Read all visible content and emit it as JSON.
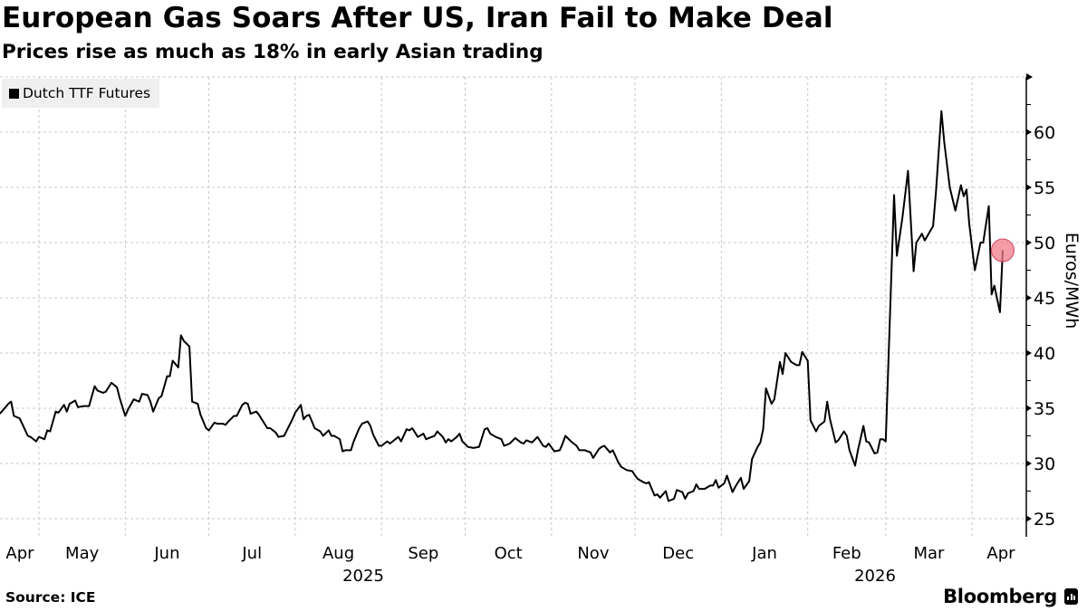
{
  "header": {
    "title": "European Gas Soars After US, Iran Fail to Make Deal",
    "subtitle": "Prices rise as much as 18% in early Asian trading"
  },
  "footer": {
    "source": "Source: ICE",
    "brand": "Bloomberg"
  },
  "colors": {
    "line": "#000000",
    "marker": "#f27b8c",
    "grid": "#c8c8c8",
    "legend_bg": "#efefef"
  },
  "chart_data": {
    "type": "line",
    "title": "European Gas Soars After US, Iran Fail to Make Deal",
    "subtitle": "Prices rise as much as 18% in early Asian trading",
    "ylabel": "Euros/MWh",
    "ylim": [
      23.4,
      65
    ],
    "y_axis_side": "right",
    "yticks": [
      "25",
      "30",
      "35",
      "40",
      "45",
      "50",
      "55",
      "60"
    ],
    "xticks": [
      {
        "label": "Apr",
        "date": "2025-04"
      },
      {
        "label": "May",
        "date": "2025-05"
      },
      {
        "label": "Jun",
        "date": "2025-06"
      },
      {
        "label": "Jul",
        "date": "2025-07"
      },
      {
        "label": "Aug",
        "date": "2025-08"
      },
      {
        "label": "Sep",
        "date": "2025-09"
      },
      {
        "label": "Oct",
        "date": "2025-10"
      },
      {
        "label": "Nov",
        "date": "2025-11"
      },
      {
        "label": "Dec",
        "date": "2025-12"
      },
      {
        "label": "Jan",
        "date": "2026-01"
      },
      {
        "label": "Feb",
        "date": "2026-02"
      },
      {
        "label": "Mar",
        "date": "2026-03"
      },
      {
        "label": "Apr",
        "date": "2026-04"
      }
    ],
    "year_labels": [
      "2025",
      "2026"
    ],
    "grid": true,
    "legend": {
      "placement": "top-left",
      "entries": [
        "Dutch TTF Futures"
      ]
    },
    "highlight": {
      "date": "2026-04-12",
      "value": 49.3
    },
    "series": [
      {
        "name": "Dutch TTF Futures",
        "points": [
          [
            "2025-04-17",
            34.5
          ],
          [
            "2025-04-20",
            35.4
          ],
          [
            "2025-04-21",
            35.6
          ],
          [
            "2025-04-22",
            34.3
          ],
          [
            "2025-04-24",
            34.1
          ],
          [
            "2025-04-25",
            33.6
          ],
          [
            "2025-04-27",
            32.5
          ],
          [
            "2025-04-28",
            32.4
          ],
          [
            "2025-04-30",
            32.0
          ],
          [
            "2025-05-01",
            32.4
          ],
          [
            "2025-05-03",
            32.2
          ],
          [
            "2025-05-04",
            33.0
          ],
          [
            "2025-05-05",
            32.9
          ],
          [
            "2025-05-07",
            34.7
          ],
          [
            "2025-05-08",
            34.6
          ],
          [
            "2025-05-10",
            35.3
          ],
          [
            "2025-05-11",
            34.7
          ],
          [
            "2025-05-12",
            35.4
          ],
          [
            "2025-05-14",
            35.7
          ],
          [
            "2025-05-15",
            35.1
          ],
          [
            "2025-05-17",
            35.2
          ],
          [
            "2025-05-19",
            35.2
          ],
          [
            "2025-05-21",
            37.0
          ],
          [
            "2025-05-22",
            36.6
          ],
          [
            "2025-05-24",
            36.4
          ],
          [
            "2025-05-25",
            36.5
          ],
          [
            "2025-05-27",
            37.3
          ],
          [
            "2025-05-29",
            36.9
          ],
          [
            "2025-05-30",
            35.9
          ],
          [
            "2025-06-01",
            34.3
          ],
          [
            "2025-06-02",
            34.9
          ],
          [
            "2025-06-04",
            35.8
          ],
          [
            "2025-06-06",
            35.6
          ],
          [
            "2025-06-07",
            36.3
          ],
          [
            "2025-06-09",
            36.2
          ],
          [
            "2025-06-10",
            35.6
          ],
          [
            "2025-06-11",
            34.7
          ],
          [
            "2025-06-13",
            35.9
          ],
          [
            "2025-06-14",
            36.1
          ],
          [
            "2025-06-16",
            37.9
          ],
          [
            "2025-06-17",
            37.9
          ],
          [
            "2025-06-18",
            39.3
          ],
          [
            "2025-06-20",
            38.7
          ],
          [
            "2025-06-21",
            41.6
          ],
          [
            "2025-06-22",
            41.1
          ],
          [
            "2025-06-24",
            40.6
          ],
          [
            "2025-06-25",
            35.6
          ],
          [
            "2025-06-27",
            35.4
          ],
          [
            "2025-06-28",
            34.4
          ],
          [
            "2025-06-30",
            33.2
          ],
          [
            "2025-07-01",
            33.0
          ],
          [
            "2025-07-03",
            33.7
          ],
          [
            "2025-07-04",
            33.6
          ],
          [
            "2025-07-06",
            33.6
          ],
          [
            "2025-07-07",
            33.5
          ],
          [
            "2025-07-08",
            33.8
          ],
          [
            "2025-07-10",
            34.3
          ],
          [
            "2025-07-11",
            34.3
          ],
          [
            "2025-07-13",
            35.3
          ],
          [
            "2025-07-14",
            35.5
          ],
          [
            "2025-07-15",
            35.4
          ],
          [
            "2025-07-16",
            34.5
          ],
          [
            "2025-07-18",
            34.7
          ],
          [
            "2025-07-19",
            34.4
          ],
          [
            "2025-07-21",
            33.6
          ],
          [
            "2025-07-22",
            33.2
          ],
          [
            "2025-07-23",
            33.2
          ],
          [
            "2025-07-25",
            32.8
          ],
          [
            "2025-07-26",
            32.4
          ],
          [
            "2025-07-28",
            32.5
          ],
          [
            "2025-07-29",
            33.0
          ],
          [
            "2025-07-31",
            34.0
          ],
          [
            "2025-08-01",
            34.6
          ],
          [
            "2025-08-03",
            35.3
          ],
          [
            "2025-08-04",
            34.0
          ],
          [
            "2025-08-05",
            34.3
          ],
          [
            "2025-08-06",
            34.4
          ],
          [
            "2025-08-08",
            33.2
          ],
          [
            "2025-08-10",
            32.9
          ],
          [
            "2025-08-11",
            32.5
          ],
          [
            "2025-08-13",
            33.0
          ],
          [
            "2025-08-14",
            32.5
          ],
          [
            "2025-08-15",
            32.5
          ],
          [
            "2025-08-17",
            32.2
          ],
          [
            "2025-08-18",
            31.1
          ],
          [
            "2025-08-19",
            31.2
          ],
          [
            "2025-08-21",
            31.2
          ],
          [
            "2025-08-22",
            32.0
          ],
          [
            "2025-08-24",
            33.2
          ],
          [
            "2025-08-25",
            33.6
          ],
          [
            "2025-08-27",
            33.8
          ],
          [
            "2025-08-28",
            33.4
          ],
          [
            "2025-08-29",
            32.6
          ],
          [
            "2025-08-31",
            31.6
          ],
          [
            "2025-09-01",
            31.6
          ],
          [
            "2025-09-03",
            32.0
          ],
          [
            "2025-09-04",
            31.8
          ],
          [
            "2025-09-05",
            32.0
          ],
          [
            "2025-09-07",
            32.4
          ],
          [
            "2025-09-08",
            32.0
          ],
          [
            "2025-09-10",
            33.1
          ],
          [
            "2025-09-11",
            33.0
          ],
          [
            "2025-09-12",
            33.2
          ],
          [
            "2025-09-14",
            32.4
          ],
          [
            "2025-09-16",
            32.7
          ],
          [
            "2025-09-17",
            32.2
          ],
          [
            "2025-09-19",
            32.4
          ],
          [
            "2025-09-20",
            32.5
          ],
          [
            "2025-09-21",
            32.9
          ],
          [
            "2025-09-23",
            32.4
          ],
          [
            "2025-09-24",
            31.9
          ],
          [
            "2025-09-25",
            32.2
          ],
          [
            "2025-09-26",
            32.0
          ],
          [
            "2025-09-28",
            32.4
          ],
          [
            "2025-09-29",
            32.7
          ],
          [
            "2025-09-30",
            32.0
          ],
          [
            "2025-10-02",
            31.5
          ],
          [
            "2025-10-04",
            31.4
          ],
          [
            "2025-10-06",
            31.5
          ],
          [
            "2025-10-08",
            33.1
          ],
          [
            "2025-10-09",
            33.2
          ],
          [
            "2025-10-10",
            32.7
          ],
          [
            "2025-10-12",
            32.4
          ],
          [
            "2025-10-14",
            32.2
          ],
          [
            "2025-10-15",
            31.6
          ],
          [
            "2025-10-16",
            31.7
          ],
          [
            "2025-10-17",
            31.8
          ],
          [
            "2025-10-19",
            32.3
          ],
          [
            "2025-10-21",
            31.9
          ],
          [
            "2025-10-22",
            31.8
          ],
          [
            "2025-10-23",
            32.1
          ],
          [
            "2025-10-25",
            31.9
          ],
          [
            "2025-10-27",
            32.4
          ],
          [
            "2025-10-28",
            32.0
          ],
          [
            "2025-10-29",
            31.6
          ],
          [
            "2025-10-30",
            31.5
          ],
          [
            "2025-10-31",
            31.8
          ],
          [
            "2025-11-02",
            31.1
          ],
          [
            "2025-11-04",
            31.2
          ],
          [
            "2025-11-05",
            31.8
          ],
          [
            "2025-11-06",
            32.5
          ],
          [
            "2025-11-08",
            32.0
          ],
          [
            "2025-11-10",
            31.6
          ],
          [
            "2025-11-11",
            31.2
          ],
          [
            "2025-11-13",
            31.2
          ],
          [
            "2025-11-15",
            31.0
          ],
          [
            "2025-11-16",
            30.5
          ],
          [
            "2025-11-18",
            31.3
          ],
          [
            "2025-11-19",
            31.5
          ],
          [
            "2025-11-20",
            31.6
          ],
          [
            "2025-11-22",
            31.0
          ],
          [
            "2025-11-23",
            31.2
          ],
          [
            "2025-11-25",
            30.1
          ],
          [
            "2025-11-26",
            29.7
          ],
          [
            "2025-11-28",
            29.4
          ],
          [
            "2025-11-30",
            29.3
          ],
          [
            "2025-12-01",
            28.9
          ],
          [
            "2025-12-02",
            28.6
          ],
          [
            "2025-12-04",
            28.3
          ],
          [
            "2025-12-05",
            28.2
          ],
          [
            "2025-12-06",
            28.3
          ],
          [
            "2025-12-08",
            27.1
          ],
          [
            "2025-12-09",
            27.2
          ],
          [
            "2025-12-10",
            26.9
          ],
          [
            "2025-12-12",
            27.5
          ],
          [
            "2025-12-13",
            26.6
          ],
          [
            "2025-12-15",
            26.8
          ],
          [
            "2025-12-16",
            27.6
          ],
          [
            "2025-12-18",
            27.4
          ],
          [
            "2025-12-19",
            26.8
          ],
          [
            "2025-12-20",
            27.3
          ],
          [
            "2025-12-22",
            27.5
          ],
          [
            "2025-12-23",
            28.1
          ],
          [
            "2025-12-24",
            27.7
          ],
          [
            "2025-12-26",
            27.7
          ],
          [
            "2025-12-28",
            28.0
          ],
          [
            "2025-12-29",
            28.0
          ],
          [
            "2025-12-30",
            28.5
          ],
          [
            "2025-12-31",
            27.8
          ],
          [
            "2026-01-02",
            28.2
          ],
          [
            "2026-01-03",
            28.9
          ],
          [
            "2026-01-05",
            27.4
          ],
          [
            "2026-01-06",
            27.9
          ],
          [
            "2026-01-08",
            28.7
          ],
          [
            "2026-01-09",
            27.7
          ],
          [
            "2026-01-11",
            28.4
          ],
          [
            "2026-01-12",
            30.4
          ],
          [
            "2026-01-14",
            31.5
          ],
          [
            "2026-01-15",
            31.9
          ],
          [
            "2026-01-16",
            33.1
          ],
          [
            "2026-01-17",
            36.8
          ],
          [
            "2026-01-19",
            35.4
          ],
          [
            "2026-01-20",
            35.8
          ],
          [
            "2026-01-22",
            39.2
          ],
          [
            "2026-01-23",
            38.1
          ],
          [
            "2026-01-24",
            40.0
          ],
          [
            "2026-01-26",
            39.2
          ],
          [
            "2026-01-28",
            38.9
          ],
          [
            "2026-01-29",
            38.9
          ],
          [
            "2026-01-30",
            40.1
          ],
          [
            "2026-02-01",
            39.3
          ],
          [
            "2026-02-02",
            33.9
          ],
          [
            "2026-02-04",
            32.9
          ],
          [
            "2026-02-05",
            33.4
          ],
          [
            "2026-02-07",
            33.8
          ],
          [
            "2026-02-08",
            35.6
          ],
          [
            "2026-02-09",
            34.0
          ],
          [
            "2026-02-11",
            31.9
          ],
          [
            "2026-02-12",
            32.1
          ],
          [
            "2026-02-14",
            32.9
          ],
          [
            "2026-02-15",
            32.5
          ],
          [
            "2026-02-16",
            31.2
          ],
          [
            "2026-02-18",
            29.8
          ],
          [
            "2026-02-19",
            31.2
          ],
          [
            "2026-02-21",
            33.4
          ],
          [
            "2026-02-22",
            32.0
          ],
          [
            "2026-02-23",
            31.9
          ],
          [
            "2026-02-25",
            30.9
          ],
          [
            "2026-02-26",
            31.0
          ],
          [
            "2026-02-27",
            32.2
          ],
          [
            "2026-02-28",
            32.2
          ],
          [
            "2026-03-01",
            32.0
          ],
          [
            "2026-03-04",
            54.3
          ],
          [
            "2026-03-05",
            48.8
          ],
          [
            "2026-03-07",
            52.3
          ],
          [
            "2026-03-09",
            56.5
          ],
          [
            "2026-03-11",
            47.4
          ],
          [
            "2026-03-12",
            50.0
          ],
          [
            "2026-03-14",
            50.8
          ],
          [
            "2026-03-15",
            50.2
          ],
          [
            "2026-03-18",
            51.5
          ],
          [
            "2026-03-19",
            54.5
          ],
          [
            "2026-03-21",
            61.9
          ],
          [
            "2026-03-22",
            59.1
          ],
          [
            "2026-03-24",
            55.0
          ],
          [
            "2026-03-26",
            52.9
          ],
          [
            "2026-03-28",
            55.2
          ],
          [
            "2026-03-29",
            54.2
          ],
          [
            "2026-03-30",
            54.8
          ],
          [
            "2026-03-31",
            51.7
          ],
          [
            "2026-04-02",
            47.5
          ],
          [
            "2026-04-04",
            50.0
          ],
          [
            "2026-04-05",
            50.0
          ],
          [
            "2026-04-07",
            53.3
          ],
          [
            "2026-04-08",
            45.3
          ],
          [
            "2026-04-09",
            46.1
          ],
          [
            "2026-04-11",
            43.7
          ],
          [
            "2026-04-12",
            49.3
          ]
        ]
      }
    ]
  }
}
